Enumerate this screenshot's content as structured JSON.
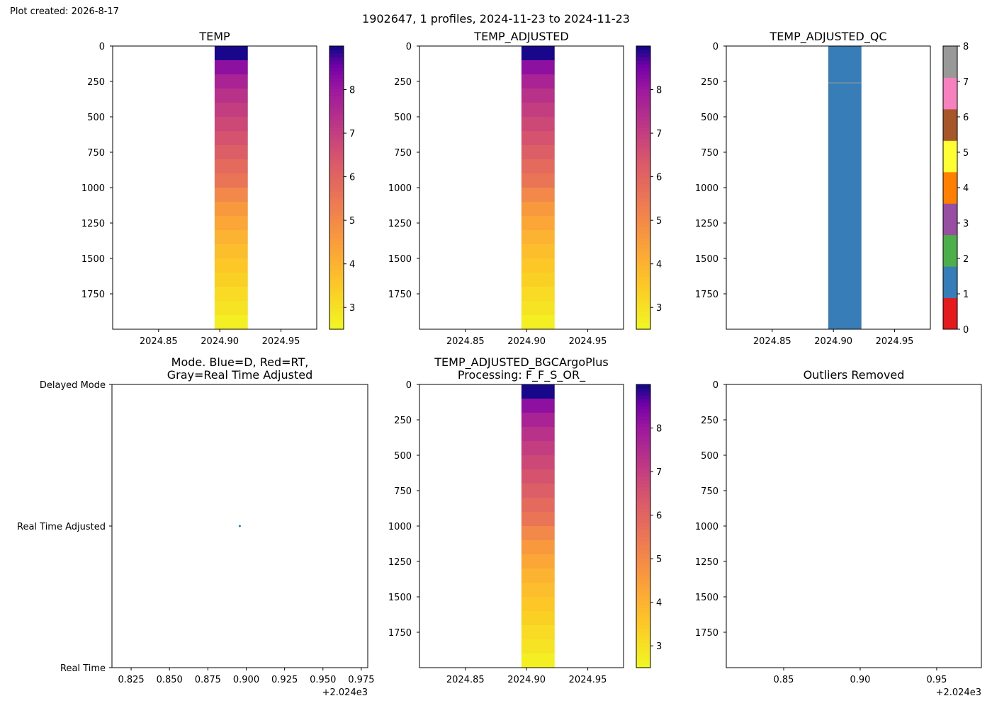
{
  "created": "Plot created: 2026-8-17",
  "suptitle": "1902647, 1 profiles, 2024-11-23 to 2024-11-23",
  "chart_data": [
    {
      "type": "heatmap",
      "title": "TEMP",
      "x_ticks": [
        "2024.85",
        "2024.90",
        "2024.95"
      ],
      "y_ticks": [
        "0",
        "250",
        "500",
        "750",
        "1000",
        "1250",
        "1500",
        "1750"
      ],
      "xlim": [
        2024.8125,
        2024.9792
      ],
      "ylim": [
        2000,
        0
      ],
      "colormap": "plasma_r",
      "colorbar_ticks": [
        "3",
        "4",
        "5",
        "6",
        "7",
        "8"
      ],
      "clim": [
        2.5,
        9.0
      ],
      "profile_x": [
        2024.8958,
        2024.9229
      ],
      "series": [
        {
          "depth_range": [
            0,
            100
          ],
          "value": 8.95
        },
        {
          "depth_range": [
            100,
            200
          ],
          "value": 8.2
        },
        {
          "depth_range": [
            200,
            300
          ],
          "value": 7.7
        },
        {
          "depth_range": [
            300,
            400
          ],
          "value": 7.3
        },
        {
          "depth_range": [
            400,
            500
          ],
          "value": 7.0
        },
        {
          "depth_range": [
            500,
            600
          ],
          "value": 6.75
        },
        {
          "depth_range": [
            600,
            700
          ],
          "value": 6.5
        },
        {
          "depth_range": [
            700,
            800
          ],
          "value": 6.2
        },
        {
          "depth_range": [
            800,
            900
          ],
          "value": 5.85
        },
        {
          "depth_range": [
            900,
            1000
          ],
          "value": 5.55
        },
        {
          "depth_range": [
            1000,
            1100
          ],
          "value": 5.05
        },
        {
          "depth_range": [
            1100,
            1200
          ],
          "value": 4.6
        },
        {
          "depth_range": [
            1200,
            1300
          ],
          "value": 4.3
        },
        {
          "depth_range": [
            1300,
            1400
          ],
          "value": 4.0
        },
        {
          "depth_range": [
            1400,
            1500
          ],
          "value": 3.75
        },
        {
          "depth_range": [
            1500,
            1600
          ],
          "value": 3.55
        },
        {
          "depth_range": [
            1600,
            1700
          ],
          "value": 3.35
        },
        {
          "depth_range": [
            1700,
            1800
          ],
          "value": 3.15
        },
        {
          "depth_range": [
            1800,
            1900
          ],
          "value": 2.95
        },
        {
          "depth_range": [
            1900,
            2000
          ],
          "value": 2.7
        }
      ]
    },
    {
      "type": "heatmap",
      "title": "TEMP_ADJUSTED",
      "x_ticks": [
        "2024.85",
        "2024.90",
        "2024.95"
      ],
      "y_ticks": [
        "0",
        "250",
        "500",
        "750",
        "1000",
        "1250",
        "1500",
        "1750"
      ],
      "xlim": [
        2024.8125,
        2024.9792
      ],
      "ylim": [
        2000,
        0
      ],
      "colormap": "plasma_r",
      "colorbar_ticks": [
        "3",
        "4",
        "5",
        "6",
        "7",
        "8"
      ],
      "clim": [
        2.5,
        9.0
      ],
      "profile_x": [
        2024.8958,
        2024.9229
      ],
      "series": [
        {
          "depth_range": [
            0,
            100
          ],
          "value": 8.95
        },
        {
          "depth_range": [
            100,
            200
          ],
          "value": 8.2
        },
        {
          "depth_range": [
            200,
            300
          ],
          "value": 7.7
        },
        {
          "depth_range": [
            300,
            400
          ],
          "value": 7.3
        },
        {
          "depth_range": [
            400,
            500
          ],
          "value": 7.0
        },
        {
          "depth_range": [
            500,
            600
          ],
          "value": 6.75
        },
        {
          "depth_range": [
            600,
            700
          ],
          "value": 6.5
        },
        {
          "depth_range": [
            700,
            800
          ],
          "value": 6.2
        },
        {
          "depth_range": [
            800,
            900
          ],
          "value": 5.85
        },
        {
          "depth_range": [
            900,
            1000
          ],
          "value": 5.55
        },
        {
          "depth_range": [
            1000,
            1100
          ],
          "value": 5.05
        },
        {
          "depth_range": [
            1100,
            1200
          ],
          "value": 4.6
        },
        {
          "depth_range": [
            1200,
            1300
          ],
          "value": 4.3
        },
        {
          "depth_range": [
            1300,
            1400
          ],
          "value": 4.0
        },
        {
          "depth_range": [
            1400,
            1500
          ],
          "value": 3.75
        },
        {
          "depth_range": [
            1500,
            1600
          ],
          "value": 3.55
        },
        {
          "depth_range": [
            1600,
            1700
          ],
          "value": 3.35
        },
        {
          "depth_range": [
            1700,
            1800
          ],
          "value": 3.15
        },
        {
          "depth_range": [
            1800,
            1900
          ],
          "value": 2.95
        },
        {
          "depth_range": [
            1900,
            2000
          ],
          "value": 2.7
        }
      ]
    },
    {
      "type": "heatmap",
      "title": "TEMP_ADJUSTED_QC",
      "x_ticks": [
        "2024.85",
        "2024.90",
        "2024.95"
      ],
      "y_ticks": [
        "0",
        "250",
        "500",
        "750",
        "1000",
        "1250",
        "1500",
        "1750"
      ],
      "xlim": [
        2024.8125,
        2024.9792
      ],
      "ylim": [
        2000,
        0
      ],
      "colormap": "qc_categorical",
      "colorbar_ticks": [
        "0",
        "1",
        "2",
        "3",
        "4",
        "5",
        "6",
        "7",
        "8"
      ],
      "qc_colors": [
        "#e41a1c",
        "#377eb8",
        "#4daf4a",
        "#984ea3",
        "#ff7f00",
        "#ffff33",
        "#a65628",
        "#f781bf",
        "#999999"
      ],
      "profile_x": [
        2024.8958,
        2024.9229
      ],
      "qc_value": 1,
      "marker_line_depth": 260
    },
    {
      "type": "scatter",
      "title": "Mode. Blue=D, Red=RT,\nGray=Real Time Adjusted",
      "title_lines": [
        "Mode. Blue=D, Red=RT,",
        "Gray=Real Time Adjusted"
      ],
      "y_categories": [
        "Delayed Mode",
        "Real Time Adjusted",
        "Real Time"
      ],
      "x_ticks": [
        "0.825",
        "0.850",
        "0.875",
        "0.900",
        "0.925",
        "0.950",
        "0.975"
      ],
      "x_offset_label": "+2.024e3",
      "xlim": [
        0.8125,
        0.9792
      ],
      "points": [
        {
          "x": 0.8958,
          "y": "Real Time Adjusted",
          "color": "#1f77b4"
        }
      ]
    },
    {
      "type": "heatmap",
      "title": "TEMP_ADJUSTED_BGCArgoPlus\nProcessing: F_F_S_OR_",
      "title_lines": [
        "TEMP_ADJUSTED_BGCArgoPlus",
        "Processing: F_F_S_OR_"
      ],
      "x_ticks": [
        "2024.85",
        "2024.90",
        "2024.95"
      ],
      "y_ticks": [
        "0",
        "250",
        "500",
        "750",
        "1000",
        "1250",
        "1500",
        "1750"
      ],
      "xlim": [
        2024.8125,
        2024.9792
      ],
      "ylim": [
        2000,
        0
      ],
      "colormap": "plasma_r",
      "colorbar_ticks": [
        "3",
        "4",
        "5",
        "6",
        "7",
        "8"
      ],
      "clim": [
        2.5,
        9.0
      ],
      "profile_x": [
        2024.8958,
        2024.9229
      ],
      "series": [
        {
          "depth_range": [
            0,
            100
          ],
          "value": 8.95
        },
        {
          "depth_range": [
            100,
            200
          ],
          "value": 8.2
        },
        {
          "depth_range": [
            200,
            300
          ],
          "value": 7.7
        },
        {
          "depth_range": [
            300,
            400
          ],
          "value": 7.3
        },
        {
          "depth_range": [
            400,
            500
          ],
          "value": 7.0
        },
        {
          "depth_range": [
            500,
            600
          ],
          "value": 6.75
        },
        {
          "depth_range": [
            600,
            700
          ],
          "value": 6.5
        },
        {
          "depth_range": [
            700,
            800
          ],
          "value": 6.2
        },
        {
          "depth_range": [
            800,
            900
          ],
          "value": 5.85
        },
        {
          "depth_range": [
            900,
            1000
          ],
          "value": 5.55
        },
        {
          "depth_range": [
            1000,
            1100
          ],
          "value": 5.05
        },
        {
          "depth_range": [
            1100,
            1200
          ],
          "value": 4.6
        },
        {
          "depth_range": [
            1200,
            1300
          ],
          "value": 4.3
        },
        {
          "depth_range": [
            1300,
            1400
          ],
          "value": 4.0
        },
        {
          "depth_range": [
            1400,
            1500
          ],
          "value": 3.75
        },
        {
          "depth_range": [
            1500,
            1600
          ],
          "value": 3.55
        },
        {
          "depth_range": [
            1600,
            1700
          ],
          "value": 3.35
        },
        {
          "depth_range": [
            1700,
            1800
          ],
          "value": 3.15
        },
        {
          "depth_range": [
            1800,
            1900
          ],
          "value": 2.95
        },
        {
          "depth_range": [
            1900,
            2000
          ],
          "value": 2.7
        }
      ]
    },
    {
      "type": "scatter",
      "title": "Outliers Removed",
      "x_ticks": [
        "0.85",
        "0.90",
        "0.95"
      ],
      "x_offset_label": "+2.024e3",
      "y_ticks": [
        "0",
        "250",
        "500",
        "750",
        "1000",
        "1250",
        "1500",
        "1750"
      ],
      "xlim": [
        0.8125,
        0.9792
      ],
      "ylim": [
        2000,
        0
      ],
      "points": []
    }
  ]
}
